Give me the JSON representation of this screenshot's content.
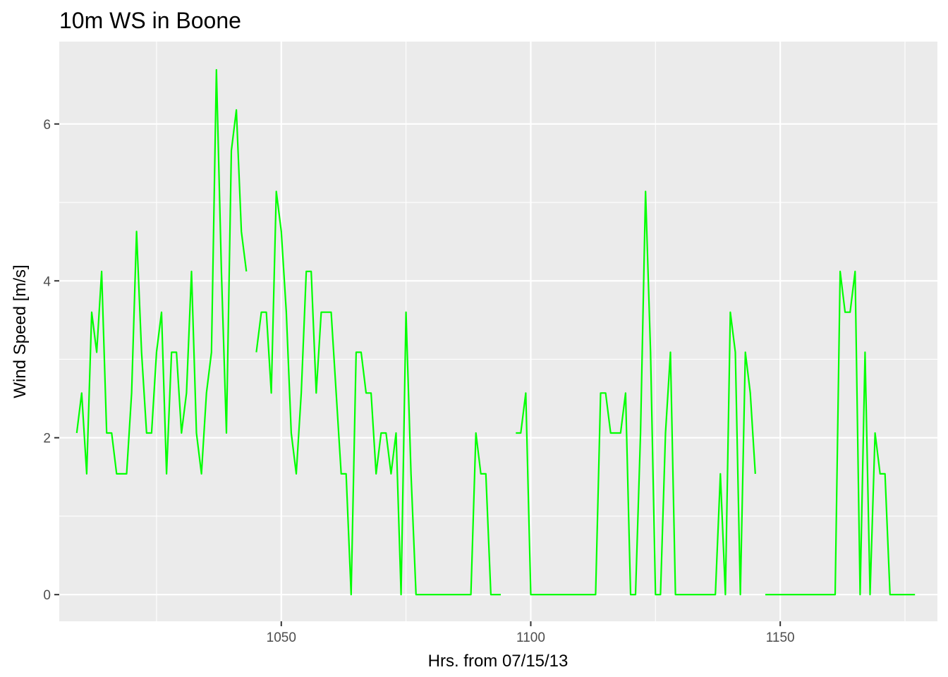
{
  "chart_data": {
    "type": "line",
    "title": "10m WS in Boone",
    "xlabel": "Hrs. from 07/15/13",
    "ylabel": "Wind Speed [m/s]",
    "xlim": [
      1005.5,
      1181.5
    ],
    "ylim": [
      -0.34,
      7.05
    ],
    "x_ticks": [
      1050,
      1100,
      1150
    ],
    "x_minor_ticks": [
      1025,
      1075,
      1125,
      1175
    ],
    "y_ticks": [
      0,
      2,
      4,
      6
    ],
    "y_minor_ticks": [
      1,
      3,
      5
    ],
    "grid": true,
    "legend": "none",
    "colors": {
      "line": "#00ff00",
      "panel": "#ebebeb",
      "grid": "#ffffff"
    },
    "series": [
      {
        "color": "#00ff00",
        "x": [
          1009,
          1010,
          1011,
          1012,
          1013,
          1014,
          1015,
          1016,
          1017,
          1018,
          1019,
          1020,
          1021,
          1022,
          1023,
          1024,
          1025,
          1026,
          1027,
          1028,
          1029,
          1030,
          1031,
          1032,
          1033,
          1034,
          1035,
          1036,
          1037,
          1038,
          1039,
          1040,
          1041,
          1042,
          1043,
          1044,
          1045,
          1046,
          1047,
          1048,
          1049,
          1050,
          1051,
          1052,
          1053,
          1054,
          1055,
          1056,
          1057,
          1058,
          1059,
          1060,
          1061,
          1062,
          1063,
          1064,
          1065,
          1066,
          1067,
          1068,
          1069,
          1070,
          1071,
          1072,
          1073,
          1074,
          1075,
          1076,
          1077,
          1078,
          1079,
          1080,
          1081,
          1082,
          1083,
          1084,
          1085,
          1086,
          1087,
          1088,
          1089,
          1090,
          1091,
          1092,
          1093,
          1094,
          1095,
          1096,
          1097,
          1098,
          1099,
          1100,
          1101,
          1102,
          1103,
          1104,
          1105,
          1106,
          1107,
          1108,
          1109,
          1110,
          1111,
          1112,
          1113,
          1114,
          1115,
          1116,
          1117,
          1118,
          1119,
          1120,
          1121,
          1122,
          1123,
          1124,
          1125,
          1126,
          1127,
          1128,
          1129,
          1130,
          1131,
          1132,
          1133,
          1134,
          1135,
          1136,
          1137,
          1138,
          1139,
          1140,
          1141,
          1142,
          1143,
          1144,
          1145,
          1146,
          1147,
          1148,
          1149,
          1150,
          1151,
          1152,
          1153,
          1154,
          1155,
          1156,
          1157,
          1158,
          1159,
          1160,
          1161,
          1162,
          1163,
          1164,
          1165,
          1166,
          1167,
          1168,
          1169,
          1170,
          1171,
          1172,
          1173,
          1174,
          1175,
          1176,
          1177
        ],
        "y": [
          2.06,
          2.57,
          1.54,
          3.6,
          3.09,
          4.12,
          2.06,
          2.06,
          1.54,
          1.54,
          1.54,
          2.57,
          4.63,
          3.09,
          2.06,
          2.06,
          3.09,
          3.6,
          1.54,
          3.09,
          3.09,
          2.06,
          2.57,
          4.12,
          2.06,
          1.54,
          2.57,
          3.09,
          6.69,
          4.12,
          2.06,
          5.66,
          6.18,
          4.63,
          4.12,
          null,
          3.09,
          3.6,
          3.6,
          2.57,
          5.14,
          4.63,
          3.6,
          2.06,
          1.54,
          2.57,
          4.12,
          4.12,
          2.57,
          3.6,
          3.6,
          3.6,
          2.57,
          1.54,
          1.54,
          0,
          3.09,
          3.09,
          2.57,
          2.57,
          1.54,
          2.06,
          2.06,
          1.54,
          2.06,
          0,
          3.6,
          1.54,
          0,
          0,
          0,
          0,
          0,
          0,
          0,
          0,
          0,
          0,
          0,
          0,
          2.06,
          1.54,
          1.54,
          0,
          0,
          0,
          null,
          null,
          2.06,
          2.06,
          2.57,
          0,
          0,
          0,
          0,
          0,
          0,
          0,
          0,
          0,
          0,
          0,
          0,
          0,
          0,
          2.57,
          2.57,
          2.06,
          2.06,
          2.06,
          2.57,
          0,
          0,
          2.06,
          5.14,
          3.09,
          0,
          0,
          2.06,
          3.09,
          0,
          0,
          0,
          0,
          0,
          0,
          0,
          0,
          0,
          1.54,
          0,
          3.6,
          3.09,
          0,
          3.09,
          2.57,
          1.54,
          null,
          0,
          0,
          0,
          0,
          0,
          0,
          0,
          0,
          0,
          0,
          0,
          0,
          0,
          0,
          0,
          4.12,
          3.6,
          3.6,
          4.12,
          0,
          3.09,
          0,
          2.06,
          1.54,
          1.54,
          0,
          0,
          0,
          0,
          0,
          0
        ]
      }
    ]
  }
}
